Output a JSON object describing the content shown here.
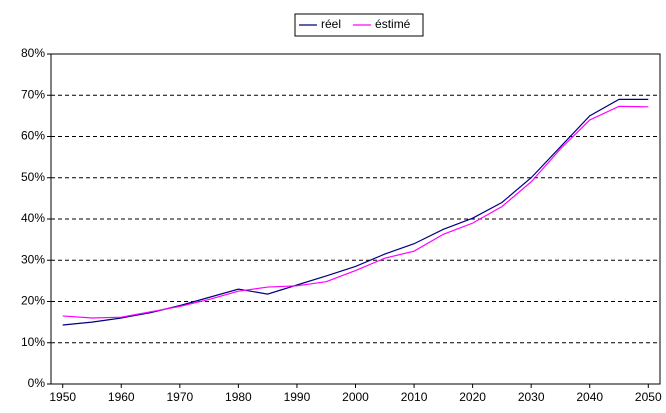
{
  "chart_data": {
    "type": "line",
    "x": [
      1950,
      1955,
      1960,
      1965,
      1970,
      1975,
      1980,
      1985,
      1990,
      1995,
      2000,
      2005,
      2010,
      2015,
      2020,
      2025,
      2030,
      2035,
      2040,
      2045,
      2050
    ],
    "series": [
      {
        "name": "réel",
        "color": "#000080",
        "values": [
          14.3,
          15,
          16,
          17.3,
          19,
          21,
          23,
          21.8,
          24,
          26.2,
          28.5,
          31.5,
          34,
          37.5,
          40.2,
          44,
          50,
          57.5,
          65,
          69,
          69
        ]
      },
      {
        "name": "éstimé",
        "color": "#ff00ff",
        "values": [
          16.5,
          16,
          16.2,
          17.5,
          18.8,
          20.5,
          22.5,
          23.5,
          23.8,
          24.8,
          27.5,
          30.5,
          32.2,
          36.3,
          39,
          43,
          49,
          57,
          64,
          67.3,
          67.2
        ]
      }
    ],
    "xlim": [
      1948,
      2052
    ],
    "xticks": [
      1950,
      1960,
      1970,
      1980,
      1990,
      2000,
      2010,
      2020,
      2030,
      2040,
      2050
    ],
    "ylim": [
      0,
      80
    ],
    "yticks": [
      {
        "value": 0,
        "label": "0%"
      },
      {
        "value": 10,
        "label": "10%"
      },
      {
        "value": 20,
        "label": "20%"
      },
      {
        "value": 30,
        "label": "30%"
      },
      {
        "value": 40,
        "label": "40%"
      },
      {
        "value": 50,
        "label": "50%"
      },
      {
        "value": 60,
        "label": "60%"
      },
      {
        "value": 70,
        "label": "70%"
      },
      {
        "value": 80,
        "label": "80%"
      }
    ],
    "grid": true,
    "legend": "top"
  }
}
